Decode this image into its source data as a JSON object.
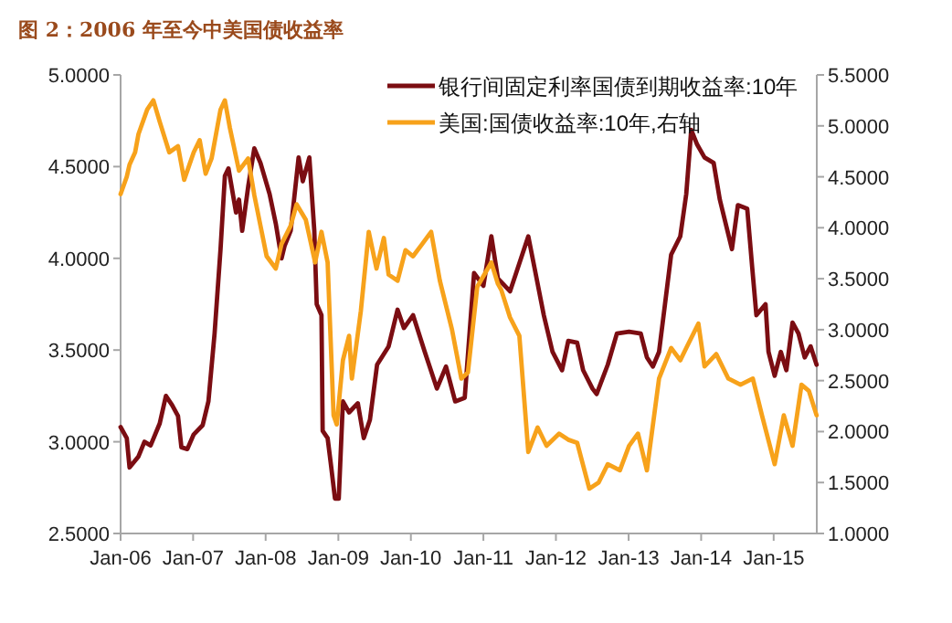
{
  "chart_data": {
    "type": "line",
    "title": "图 2：2006 年至今中美国债收益率",
    "legend": "top right",
    "xlim": [
      "2006-01-01",
      "2015-08-06"
    ],
    "xticks": [
      {
        "value": "2006-01-01",
        "label": "Jan-06"
      },
      {
        "value": "2007-01-01",
        "label": "Jan-07"
      },
      {
        "value": "2008-01-01",
        "label": "Jan-08"
      },
      {
        "value": "2009-01-01",
        "label": "Jan-09"
      },
      {
        "value": "2010-01-01",
        "label": "Jan-10"
      },
      {
        "value": "2011-01-01",
        "label": "Jan-11"
      },
      {
        "value": "2012-01-01",
        "label": "Jan-12"
      },
      {
        "value": "2013-01-01",
        "label": "Jan-13"
      },
      {
        "value": "2014-01-01",
        "label": "Jan-14"
      },
      {
        "value": "2015-01-01",
        "label": "Jan-15"
      }
    ],
    "ylim": [
      2.5,
      5
    ],
    "yticks": [
      {
        "value": 2.5,
        "label": "2.5000"
      },
      {
        "value": 3,
        "label": "3.0000"
      },
      {
        "value": 3.5,
        "label": "3.5000"
      },
      {
        "value": 4,
        "label": "4.0000"
      },
      {
        "value": 4.5,
        "label": "4.5000"
      },
      {
        "value": 5,
        "label": "5.0000"
      }
    ],
    "y2lim": [
      1,
      5.5
    ],
    "y2ticks": [
      {
        "value": 1,
        "label": "1.0000"
      },
      {
        "value": 1.5,
        "label": "1.5000"
      },
      {
        "value": 2,
        "label": "2.0000"
      },
      {
        "value": 2.5,
        "label": "2.5000"
      },
      {
        "value": 3,
        "label": "3.0000"
      },
      {
        "value": 3.5,
        "label": "3.5000"
      },
      {
        "value": 4,
        "label": "4.0000"
      },
      {
        "value": 4.5,
        "label": "4.5000"
      },
      {
        "value": 5,
        "label": "5.0000"
      },
      {
        "value": 5.5,
        "label": "5.5000"
      }
    ],
    "series": [
      {
        "name": "银行间固定利率国债到期收益率:10年",
        "color": "#7b0d12",
        "x": [
          "2006-01-01",
          "2006-02-01",
          "2006-02-15",
          "2006-04-01",
          "2006-05-01",
          "2006-06-01",
          "2006-07-17",
          "2006-08-17",
          "2006-09-17",
          "2006-10-17",
          "2006-11-03",
          "2006-12-03",
          "2007-01-04",
          "2007-02-18",
          "2007-03-19",
          "2007-04-19",
          "2007-05-19",
          "2007-06-10",
          "2007-06-28",
          "2007-08-05",
          "2007-08-20",
          "2007-09-05",
          "2007-10-05",
          "2007-11-05",
          "2007-12-06",
          "2008-01-21",
          "2008-02-21",
          "2008-03-21",
          "2008-04-06",
          "2008-05-06",
          "2008-06-15",
          "2008-07-06",
          "2008-08-08",
          "2008-09-02",
          "2008-09-14",
          "2008-10-08",
          "2008-10-14",
          "2008-11-08",
          "2008-11-23",
          "2008-12-15",
          "2009-01-03",
          "2009-01-24",
          "2009-02-24",
          "2009-04-09",
          "2009-05-09",
          "2009-06-09",
          "2009-07-15",
          "2009-09-11",
          "2009-10-26",
          "2009-11-27",
          "2010-01-12",
          "2010-03-12",
          "2010-05-12",
          "2010-06-27",
          "2010-08-12",
          "2010-09-29",
          "2010-11-15",
          "2011-01-01",
          "2011-02-10",
          "2011-03-15",
          "2011-05-15",
          "2011-06-15",
          "2011-08-15",
          "2011-09-15",
          "2011-11-01",
          "2011-12-15",
          "2012-02-01",
          "2012-03-03",
          "2012-04-17",
          "2012-05-17",
          "2012-07-03",
          "2012-07-24",
          "2012-09-18",
          "2012-11-03",
          "2013-01-03",
          "2013-03-03",
          "2013-04-03",
          "2013-05-03",
          "2013-06-03",
          "2013-07-03",
          "2013-08-03",
          "2013-09-18",
          "2013-10-18",
          "2013-11-12",
          "2013-12-12",
          "2014-01-18",
          "2014-03-05",
          "2014-04-05",
          "2014-06-05",
          "2014-07-05",
          "2014-08-21",
          "2014-09-15",
          "2014-10-06",
          "2014-11-21",
          "2014-12-06",
          "2015-01-06",
          "2015-02-06",
          "2015-03-06",
          "2015-04-06",
          "2015-05-06",
          "2015-06-06",
          "2015-07-06",
          "2015-08-05"
        ],
        "values": [
          3.08,
          3.02,
          2.86,
          2.92,
          3.0,
          2.98,
          3.1,
          3.25,
          3.2,
          3.14,
          2.97,
          2.96,
          3.04,
          3.09,
          3.22,
          3.59,
          4.05,
          4.45,
          4.49,
          4.25,
          4.32,
          4.15,
          4.39,
          4.6,
          4.52,
          4.35,
          4.19,
          4.0,
          4.07,
          4.15,
          4.55,
          4.42,
          4.55,
          4.15,
          3.75,
          3.69,
          3.06,
          3.02,
          2.89,
          2.69,
          2.69,
          3.22,
          3.16,
          3.21,
          3.02,
          3.12,
          3.42,
          3.52,
          3.72,
          3.62,
          3.69,
          3.49,
          3.29,
          3.41,
          3.22,
          3.24,
          3.92,
          3.85,
          4.12,
          3.89,
          3.82,
          3.92,
          4.12,
          3.95,
          3.69,
          3.49,
          3.39,
          3.55,
          3.54,
          3.39,
          3.29,
          3.26,
          3.42,
          3.59,
          3.6,
          3.59,
          3.46,
          3.41,
          3.49,
          3.75,
          4.02,
          4.12,
          4.35,
          4.7,
          4.62,
          4.55,
          4.52,
          4.32,
          4.05,
          4.29,
          4.27,
          3.95,
          3.69,
          3.75,
          3.49,
          3.36,
          3.49,
          3.39,
          3.65,
          3.59,
          3.46,
          3.52,
          3.42
        ]
      },
      {
        "name": "美国:国债收益率:10年,右轴",
        "color": "#f7a21b",
        "axis": "y2",
        "x": [
          "2006-01-01",
          "2006-02-01",
          "2006-02-15",
          "2006-03-15",
          "2006-04-01",
          "2006-05-15",
          "2006-06-15",
          "2006-07-17",
          "2006-09-03",
          "2006-10-17",
          "2006-11-17",
          "2007-01-04",
          "2007-02-03",
          "2007-03-05",
          "2007-04-04",
          "2007-05-19",
          "2007-06-10",
          "2007-07-05",
          "2007-08-20",
          "2007-10-05",
          "2007-11-05",
          "2007-12-06",
          "2008-01-06",
          "2008-02-21",
          "2008-03-21",
          "2008-05-06",
          "2008-06-05",
          "2008-07-21",
          "2008-09-06",
          "2008-10-08",
          "2008-11-08",
          "2008-12-08",
          "2008-12-24",
          "2009-01-24",
          "2009-02-24",
          "2009-03-10",
          "2009-04-24",
          "2009-06-03",
          "2009-07-12",
          "2009-08-18",
          "2009-09-11",
          "2009-10-26",
          "2009-12-05",
          "2010-01-12",
          "2010-02-27",
          "2010-04-13",
          "2010-05-27",
          "2010-07-27",
          "2010-09-12",
          "2010-10-15",
          "2010-12-01",
          "2011-02-10",
          "2011-03-15",
          "2011-04-01",
          "2011-05-15",
          "2011-07-01",
          "2011-08-15",
          "2011-10-01",
          "2011-11-15",
          "2012-01-17",
          "2012-03-03",
          "2012-04-17",
          "2012-06-17",
          "2012-08-03",
          "2012-09-18",
          "2012-11-18",
          "2013-01-03",
          "2013-02-17",
          "2013-04-03",
          "2013-06-03",
          "2013-08-03",
          "2013-09-18",
          "2013-10-18",
          "2013-12-18",
          "2014-01-18",
          "2014-03-18",
          "2014-05-18",
          "2014-07-18",
          "2014-09-18",
          "2014-11-03",
          "2015-01-06",
          "2015-02-21",
          "2015-04-06",
          "2015-05-21",
          "2015-06-27",
          "2015-08-05"
        ],
        "values": [
          4.33,
          4.5,
          4.62,
          4.74,
          4.92,
          5.16,
          5.25,
          5.04,
          4.74,
          4.8,
          4.47,
          4.74,
          4.86,
          4.53,
          4.68,
          5.16,
          5.25,
          4.98,
          4.56,
          4.68,
          4.32,
          4.02,
          3.72,
          3.6,
          3.84,
          4.02,
          4.23,
          4.08,
          3.66,
          3.96,
          3.66,
          2.16,
          2.07,
          2.7,
          2.94,
          2.52,
          3.18,
          3.96,
          3.6,
          3.9,
          3.54,
          3.48,
          3.78,
          3.72,
          3.84,
          3.96,
          3.48,
          3.0,
          2.52,
          2.58,
          3.42,
          3.66,
          3.45,
          3.39,
          3.12,
          2.94,
          1.8,
          2.04,
          1.86,
          1.98,
          1.92,
          1.89,
          1.44,
          1.5,
          1.68,
          1.62,
          1.86,
          1.98,
          1.62,
          2.52,
          2.82,
          2.7,
          2.82,
          3.06,
          2.64,
          2.76,
          2.52,
          2.46,
          2.52,
          2.16,
          1.68,
          2.16,
          1.86,
          2.46,
          2.4,
          2.16
        ]
      }
    ]
  }
}
